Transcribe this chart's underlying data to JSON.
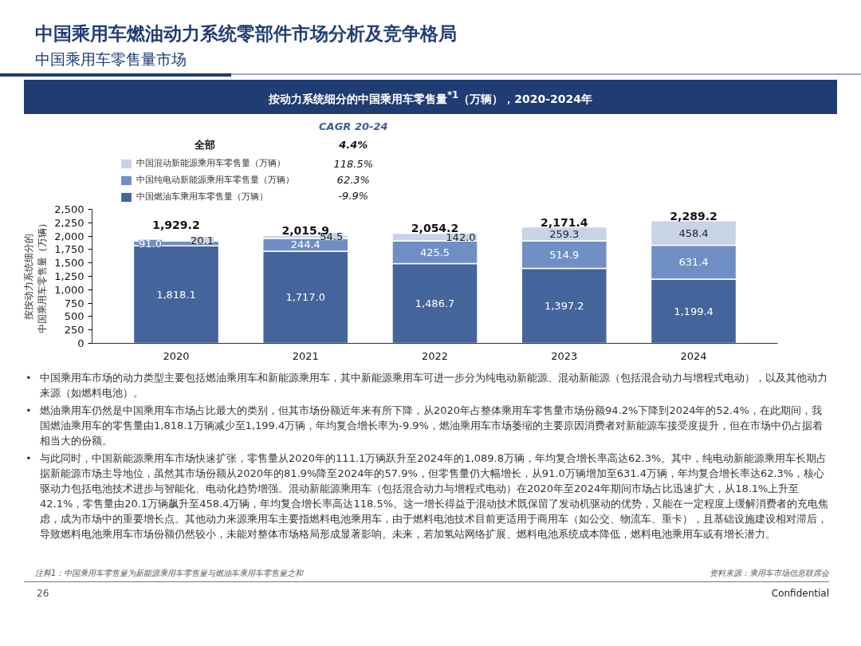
{
  "chart_data": {
    "type": "bar",
    "stacked": true,
    "title": "按动力系统细分的中国乘用车零售量$^{*1}$（万辆），2020-2024年",
    "ylabel": "按按动力系统细分的中国乘用车零售量（万辆）",
    "categories": [
      "2020",
      "2021",
      "2022",
      "2023",
      "2024"
    ],
    "series": [
      {
        "name": "中国燃油车乘用车零售量（万辆）",
        "color": "#44659b",
        "values": [
          1818.1,
          1717.0,
          1486.7,
          1397.2,
          1199.4
        ],
        "value_labels": [
          "1,818.1",
          "1,717.0",
          "1,486.7",
          "1,397.2",
          "1,199.4"
        ]
      },
      {
        "name": "中国纯电动新能源乘用车零售量（万辆）",
        "color": "#6f8fc4",
        "values": [
          91.0,
          244.4,
          425.5,
          514.9,
          631.4
        ],
        "value_labels": [
          "91.0",
          "244.4",
          "425.5",
          "514.9",
          "631.4"
        ]
      },
      {
        "name": "中国混动新能源乘用车零售量（万辆）",
        "color": "#c8d3e6",
        "values": [
          20.1,
          54.5,
          142.0,
          259.3,
          458.4
        ],
        "value_labels": [
          "20.1",
          "54.5",
          "142.0",
          "259.3",
          "458.4"
        ]
      }
    ],
    "totals": [
      "1,929.2",
      "2,015.9",
      "2,054.2",
      "2,171.4",
      "2,289.2"
    ],
    "ylim": [
      0,
      2500
    ],
    "yticks": [
      0,
      250,
      500,
      750,
      {
        "value": 1000,
        "label": "1,000"
      },
      {
        "value": 1250,
        "label": "1,250"
      },
      {
        "value": 1500,
        "label": "1,500"
      },
      {
        "value": 1750,
        "label": "1,750"
      },
      {
        "value": 2000,
        "label": "2,000"
      },
      {
        "value": 2250,
        "label": "2,250"
      },
      {
        "value": 2500,
        "label": "2,500"
      }
    ],
    "grid": false,
    "legend": "top",
    "annotations": [
      "中国乘用车燃油动力系统零部件市场分析及竞争格局",
      "中国乘用车零售量市场",
      "CAGR 20-24",
      "全部",
      "4.4%",
      "-9.9%",
      "62.3%",
      "118.5%",
      "中国乘用车市场的动力类型主要包括燃油乘用车和新能源乘用车，其中新能源乘用车可进一步分为纯电动新能源、混动新能源（包括混合动力与增程式电动），以及其他动力来源（如燃料电池）。",
      "燃油乘用车仍然是中国乘用车市场占比最大的类别，但其市场份额近年来有所下降，从2020年占整体乘用车零售量市场份额94.2%下降到2024年的52.4%，在此期间，我国燃油乘用车的零售量由1,818.1万辆减少至1,199.4万辆，年均复合增长率为-9.9%，燃油乘用车市场萎缩的主要原因消费者对新能源车接受度提升，但在市场中仍占据着相当大的份额。",
      "与此同时，中国新能源乘用车市场快速扩张，零售量从2020年的111.1万辆跃升至2024年的1,089.8万辆，年均复合增长率高达62.3%。其中，纯电动新能源乘用车长期占据新能源市场主导地位，虽然其市场份额从2020年的81.9%降至2024年的57.9%，但零售量仍大幅增长，从91.0万辆增加至631.4万辆，年均复合增长率达62.3%，核心驱动力包括电池技术进步与智能化、电动化趋势增强。混动新能源乘用车（包括混合动力与增程式电动）在2020年至2024年期间市场占比迅速扩大，从18.1%上升至42.1%，零售量由20.1万辆飙升至458.4万辆，年均复合增长率高达118.5%。这一增长得益于混动技术既保留了发动机驱动的优势，又能在一定程度上缓解消费者的充电焦虑，成为市场中的重要增长点。其他动力来源乘用车主要指燃料电池乘用车，由于燃料电池技术目前更适用于商用车（如公交、物流车、重卡），且基础设施建设相对滞后，导致燃料电池乘用车市场份额仍然较小，未能对整体市场格局形成显著影响。未来，若加氢站网络扩展、燃料电池系统成本降低，燃料电池乘用车或有增长潜力。",
      "注释1：中国乘用车零售量为新能源乘用车零售量与燃油车乘用车零售量之和",
      "资料来源：乘用车市场信息联席会",
      "26",
      "Confidential",
      "•"
    ]
  }
}
